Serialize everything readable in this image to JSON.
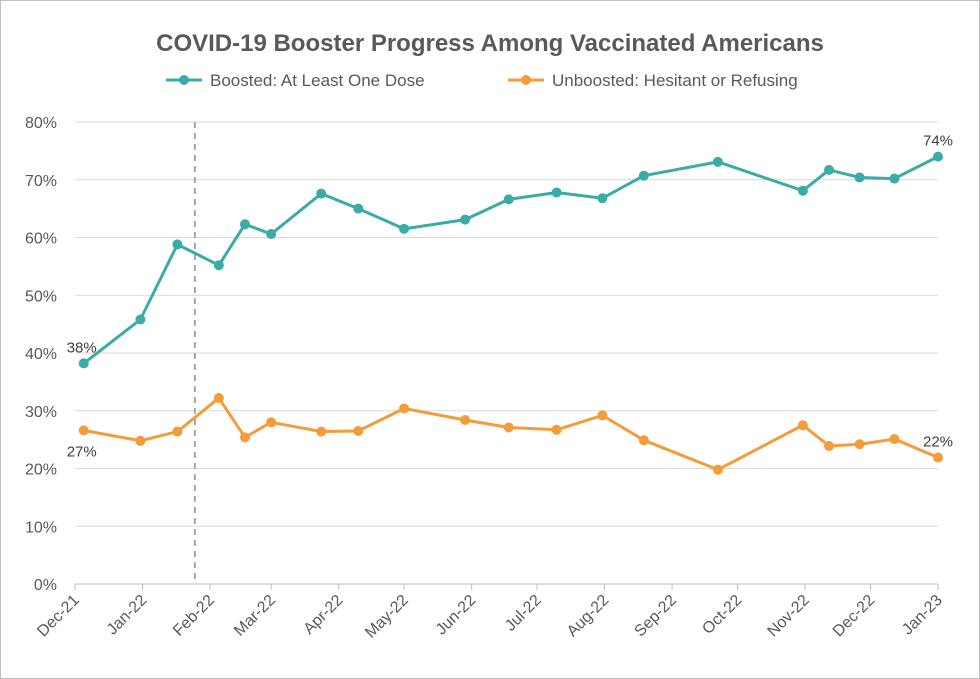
{
  "chart_data": {
    "type": "line",
    "title": "COVID-19 Booster Progress Among Vaccinated Americans",
    "xlabel": "",
    "ylabel": "",
    "ylim": [
      0,
      80
    ],
    "y_ticks": [
      0,
      10,
      20,
      30,
      40,
      50,
      60,
      70,
      80
    ],
    "y_tick_suffix": "%",
    "x_axis_type": "date",
    "x_tick_labels": [
      {
        "date": "2021-12-01",
        "label": "Dec-21"
      },
      {
        "date": "2022-01-01",
        "label": "Jan-22"
      },
      {
        "date": "2022-02-01",
        "label": "Feb-22"
      },
      {
        "date": "2022-03-01",
        "label": "Mar-22"
      },
      {
        "date": "2022-04-01",
        "label": "Apr-22"
      },
      {
        "date": "2022-05-01",
        "label": "May-22"
      },
      {
        "date": "2022-06-01",
        "label": "Jun-22"
      },
      {
        "date": "2022-07-01",
        "label": "Jul-22"
      },
      {
        "date": "2022-08-01",
        "label": "Aug-22"
      },
      {
        "date": "2022-09-01",
        "label": "Sep-22"
      },
      {
        "date": "2022-10-01",
        "label": "Oct-22"
      },
      {
        "date": "2022-11-01",
        "label": "Nov-22"
      },
      {
        "date": "2022-12-01",
        "label": "Dec-22"
      },
      {
        "date": "2023-01-01",
        "label": "Jan-23"
      }
    ],
    "xlim": [
      "2021-12-01",
      "2023-01-01"
    ],
    "reference_line_date": "2022-01-25",
    "legend_position": "top",
    "grid": "horizontal",
    "series": [
      {
        "name": "Boosted: At Least One Dose",
        "color": "#3aaba6",
        "points": [
          {
            "x": "2021-12-05",
            "y": 38.2
          },
          {
            "x": "2021-12-31",
            "y": 45.8
          },
          {
            "x": "2022-01-17",
            "y": 58.8
          },
          {
            "x": "2022-02-05",
            "y": 55.2
          },
          {
            "x": "2022-02-17",
            "y": 62.3
          },
          {
            "x": "2022-03-01",
            "y": 60.6
          },
          {
            "x": "2022-03-24",
            "y": 67.6
          },
          {
            "x": "2022-04-10",
            "y": 65.0
          },
          {
            "x": "2022-05-01",
            "y": 61.5
          },
          {
            "x": "2022-05-29",
            "y": 63.1
          },
          {
            "x": "2022-06-18",
            "y": 66.6
          },
          {
            "x": "2022-07-10",
            "y": 67.8
          },
          {
            "x": "2022-07-31",
            "y": 66.8
          },
          {
            "x": "2022-08-19",
            "y": 70.7
          },
          {
            "x": "2022-09-22",
            "y": 73.1
          },
          {
            "x": "2022-10-31",
            "y": 68.1
          },
          {
            "x": "2022-11-12",
            "y": 71.7
          },
          {
            "x": "2022-11-26",
            "y": 70.4
          },
          {
            "x": "2022-12-12",
            "y": 70.2
          },
          {
            "x": "2023-01-01",
            "y": 74.0
          }
        ],
        "labels": [
          {
            "index": 0,
            "text": "38%",
            "position": "above"
          },
          {
            "index": 19,
            "text": "74%",
            "position": "above"
          }
        ]
      },
      {
        "name": "Unboosted: Hesitant or Refusing",
        "color": "#f39c39",
        "points": [
          {
            "x": "2021-12-05",
            "y": 26.6
          },
          {
            "x": "2021-12-31",
            "y": 24.8
          },
          {
            "x": "2022-01-17",
            "y": 26.4
          },
          {
            "x": "2022-02-05",
            "y": 32.2
          },
          {
            "x": "2022-02-17",
            "y": 25.4
          },
          {
            "x": "2022-03-01",
            "y": 28.0
          },
          {
            "x": "2022-03-24",
            "y": 26.4
          },
          {
            "x": "2022-04-10",
            "y": 26.5
          },
          {
            "x": "2022-05-01",
            "y": 30.4
          },
          {
            "x": "2022-05-29",
            "y": 28.4
          },
          {
            "x": "2022-06-18",
            "y": 27.1
          },
          {
            "x": "2022-07-10",
            "y": 26.7
          },
          {
            "x": "2022-07-31",
            "y": 29.2
          },
          {
            "x": "2022-08-19",
            "y": 24.9
          },
          {
            "x": "2022-09-22",
            "y": 19.8
          },
          {
            "x": "2022-10-31",
            "y": 27.5
          },
          {
            "x": "2022-11-12",
            "y": 23.9
          },
          {
            "x": "2022-11-26",
            "y": 24.2
          },
          {
            "x": "2022-12-12",
            "y": 25.1
          },
          {
            "x": "2023-01-01",
            "y": 21.9
          }
        ],
        "labels": [
          {
            "index": 0,
            "text": "27%",
            "position": "below"
          },
          {
            "index": 19,
            "text": "22%",
            "position": "above"
          }
        ]
      }
    ]
  }
}
